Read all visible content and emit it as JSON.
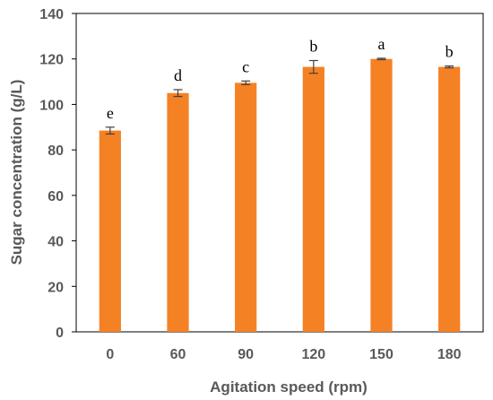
{
  "chart_data": {
    "type": "bar",
    "xlabel": "Agitation speed (rpm)",
    "ylabel": "Sugar concentration (g/L)",
    "categories": [
      "0",
      "60",
      "90",
      "120",
      "150",
      "180"
    ],
    "values": [
      88.5,
      105,
      109.5,
      116.5,
      120,
      116.5
    ],
    "errors": [
      1.5,
      1.5,
      0.8,
      2.8,
      0.3,
      0.4
    ],
    "significance_letters": [
      "e",
      "d",
      "c",
      "b",
      "a",
      "b"
    ],
    "ylim": [
      0,
      140
    ],
    "yticks": [
      "0",
      "20",
      "40",
      "60",
      "80",
      "100",
      "120",
      "140"
    ],
    "grid": false,
    "legend": "none",
    "bar_color": "#F58125",
    "error_bar_color": "#404040",
    "axis_color": "#000000"
  }
}
